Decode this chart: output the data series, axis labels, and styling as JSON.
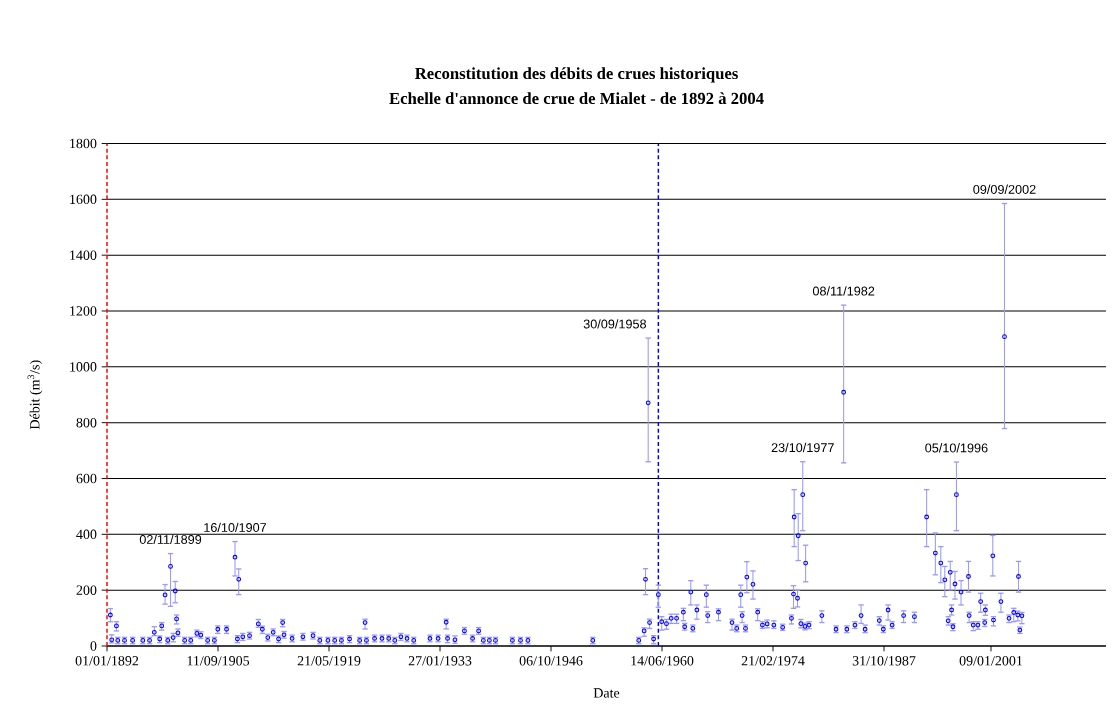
{
  "chart_data": {
    "type": "scatter",
    "title": "Reconstitution des débits de crues historiques",
    "subtitle": "Echelle d'annonce de crue de Mialet - de 1892 à 2004",
    "xlabel": "Date",
    "ylabel": "Débit (m$^{3}$/s)",
    "xlim": [
      "1892-01-01",
      "2015-03-18"
    ],
    "ylim": [
      0,
      1800
    ],
    "xticks": [
      {
        "value": "1892-01-01",
        "label": "01/01/1892"
      },
      {
        "value": "1905-09-11",
        "label": "11/09/1905"
      },
      {
        "value": "1919-05-21",
        "label": "21/05/1919"
      },
      {
        "value": "1933-01-27",
        "label": "27/01/1933"
      },
      {
        "value": "1946-10-06",
        "label": "06/10/1946"
      },
      {
        "value": "1960-06-14",
        "label": "14/06/1960"
      },
      {
        "value": "1974-02-21",
        "label": "21/02/1974"
      },
      {
        "value": "1987-10-31",
        "label": "31/10/1987"
      },
      {
        "value": "2001-01-09",
        "label": "09/01/2001"
      }
    ],
    "yticks": [
      0,
      200,
      400,
      600,
      800,
      1000,
      1200,
      1400,
      1600,
      1800
    ],
    "grid": "y",
    "x": [
      "1892-06",
      "1892-08",
      "1893-03",
      "1893-05",
      "1894-03",
      "1895-03",
      "1896-06",
      "1897-04",
      "1897-11",
      "1898-07",
      "1898-10",
      "1899-03",
      "1899-07",
      "1899-11-02",
      "1900-03",
      "1900-06",
      "1900-08",
      "1900-10",
      "1901-08",
      "1902-05",
      "1903-02",
      "1903-08",
      "1904-06",
      "1905-04",
      "1905-09",
      "1906-10",
      "1907-10-16",
      "1908-02",
      "1908-04",
      "1908-10",
      "1909-08",
      "1910-09",
      "1911-03",
      "1911-11",
      "1912-07",
      "1913-03",
      "1913-09",
      "1913-11",
      "1914-11",
      "1916-03",
      "1917-06",
      "1918-04",
      "1919-04",
      "1920-02",
      "1920-12",
      "1921-12",
      "1923-03",
      "1923-11",
      "1924-01",
      "1925-01",
      "1925-12",
      "1926-10",
      "1927-07",
      "1928-04",
      "1929-01",
      "1929-11",
      "1931-11",
      "1932-11",
      "1933-11",
      "1934-01",
      "1934-12",
      "1936-02",
      "1937-02",
      "1937-11",
      "1938-06",
      "1939-03",
      "1939-12",
      "1942-01",
      "1943-01",
      "1943-12",
      "1951-12",
      "1957-08",
      "1958-04",
      "1958-06",
      "1958-09-30",
      "1958-12",
      "1959-06",
      "1960-01",
      "1960-06",
      "1961-01",
      "1961-08",
      "1962-04",
      "1963-02",
      "1963-04",
      "1964-01",
      "1964-04",
      "1964-10",
      "1965-12",
      "1966-02",
      "1967-06",
      "1969-02",
      "1969-09",
      "1970-03",
      "1970-05",
      "1970-10",
      "1970-12",
      "1971-09",
      "1972-04",
      "1972-11",
      "1973-06",
      "1974-04",
      "1975-05",
      "1976-06",
      "1976-09",
      "1976-10",
      "1977-03",
      "1977-04",
      "1977-08",
      "1977-10-23",
      "1978-02",
      "1978-03",
      "1978-08",
      "1980-03",
      "1981-12",
      "1982-11-08",
      "1983-04",
      "1984-04",
      "1985-01",
      "1985-07",
      "1987-04",
      "1987-10",
      "1988-05",
      "1988-11",
      "1990-04",
      "1991-08",
      "1993-02",
      "1994-03",
      "1994-11",
      "1995-05",
      "1995-10",
      "1996-01",
      "1996-03",
      "1996-05",
      "1996-08",
      "1996-10-05",
      "1997-05",
      "1998-04",
      "1998-05",
      "1998-11",
      "1999-06",
      "1999-10",
      "2000-04",
      "2000-05",
      "2001-04",
      "2001-05",
      "2002-04",
      "2002-09-09",
      "2003-04",
      "2003-11",
      "2004-05",
      "2004-06",
      "2004-08",
      "2004-11"
    ],
    "series": [
      {
        "color": "#0000ff",
        "marker": "circle",
        "values": [
          111,
          22,
          72,
          20,
          20,
          20,
          20,
          20,
          49,
          25,
          72,
          183,
          20,
          285,
          30,
          197,
          97,
          47,
          20,
          20,
          45,
          39,
          20,
          20,
          60,
          60,
          318,
          25,
          239,
          33,
          37,
          79,
          60,
          30,
          49,
          25,
          84,
          40,
          27,
          33,
          37,
          20,
          20,
          20,
          20,
          25,
          20,
          84,
          20,
          27,
          27,
          27,
          20,
          33,
          27,
          20,
          27,
          27,
          85,
          27,
          22,
          54,
          27,
          54,
          20,
          20,
          20,
          20,
          20,
          20,
          20,
          20,
          54,
          239,
          871,
          84,
          25,
          184,
          87,
          80,
          99,
          99,
          121,
          69,
          193,
          63,
          129,
          184,
          109,
          121,
          84,
          63,
          184,
          109,
          63,
          247,
          221,
          121,
          75,
          79,
          75,
          67,
          99,
          186,
          462,
          171,
          395,
          80,
          542,
          70,
          297,
          75,
          109,
          60,
          909,
          60,
          75,
          109,
          60,
          91,
          60,
          129,
          75,
          109,
          105,
          462,
          333,
          297,
          237,
          90,
          264,
          129,
          69,
          222,
          542,
          193,
          249,
          109,
          75,
          75,
          159,
          84,
          129,
          323,
          93,
          159,
          1108,
          99,
          120,
          111,
          249,
          57,
          108
        ],
        "errors": [
          [
            87,
            134
          ],
          [
            11,
            40
          ],
          [
            54,
            87
          ],
          [
            8,
            31
          ],
          [
            8,
            31
          ],
          [
            8,
            31
          ],
          [
            8,
            31
          ],
          [
            8,
            31
          ],
          [
            37,
            69
          ],
          [
            12,
            36
          ],
          [
            57,
            84
          ],
          [
            150,
            220
          ],
          [
            8,
            31
          ],
          [
            142,
            331
          ],
          [
            15,
            45
          ],
          [
            155,
            231
          ],
          [
            79,
            111
          ],
          [
            35,
            61
          ],
          [
            8,
            31
          ],
          [
            8,
            31
          ],
          [
            33,
            57
          ],
          [
            27,
            51
          ],
          [
            8,
            31
          ],
          [
            8,
            31
          ],
          [
            45,
            72
          ],
          [
            45,
            72
          ],
          [
            251,
            374
          ],
          [
            12,
            37
          ],
          [
            184,
            276
          ],
          [
            20,
            45
          ],
          [
            25,
            49
          ],
          [
            67,
            95
          ],
          [
            45,
            71
          ],
          [
            18,
            42
          ],
          [
            37,
            61
          ],
          [
            12,
            36
          ],
          [
            69,
            95
          ],
          [
            28,
            52
          ],
          [
            15,
            39
          ],
          [
            21,
            45
          ],
          [
            25,
            49
          ],
          [
            8,
            31
          ],
          [
            8,
            31
          ],
          [
            8,
            31
          ],
          [
            8,
            31
          ],
          [
            12,
            37
          ],
          [
            8,
            31
          ],
          [
            61,
            96
          ],
          [
            8,
            31
          ],
          [
            15,
            39
          ],
          [
            15,
            39
          ],
          [
            15,
            39
          ],
          [
            8,
            31
          ],
          [
            20,
            45
          ],
          [
            15,
            39
          ],
          [
            8,
            31
          ],
          [
            15,
            39
          ],
          [
            15,
            39
          ],
          [
            61,
            96
          ],
          [
            12,
            39
          ],
          [
            10,
            36
          ],
          [
            42,
            66
          ],
          [
            15,
            39
          ],
          [
            42,
            66
          ],
          [
            8,
            31
          ],
          [
            8,
            31
          ],
          [
            8,
            31
          ],
          [
            8,
            31
          ],
          [
            8,
            31
          ],
          [
            8,
            31
          ],
          [
            8,
            31
          ],
          [
            8,
            31
          ],
          [
            35,
            65
          ],
          [
            184,
            277
          ],
          [
            660,
            1103
          ],
          [
            63,
            96
          ],
          [
            8,
            37
          ],
          [
            139,
            218
          ],
          [
            57,
            105
          ],
          [
            60,
            95
          ],
          [
            81,
            114
          ],
          [
            81,
            114
          ],
          [
            91,
            135
          ],
          [
            57,
            81
          ],
          [
            147,
            234
          ],
          [
            51,
            75
          ],
          [
            96,
            147
          ],
          [
            139,
            218
          ],
          [
            84,
            123
          ],
          [
            91,
            133
          ],
          [
            57,
            96
          ],
          [
            51,
            75
          ],
          [
            139,
            218
          ],
          [
            84,
            123
          ],
          [
            51,
            75
          ],
          [
            191,
            302
          ],
          [
            168,
            269
          ],
          [
            91,
            133
          ],
          [
            63,
            87
          ],
          [
            65,
            93
          ],
          [
            63,
            90
          ],
          [
            56,
            78
          ],
          [
            79,
            111
          ],
          [
            135,
            216
          ],
          [
            356,
            560
          ],
          [
            140,
            200
          ],
          [
            306,
            474
          ],
          [
            65,
            95
          ],
          [
            413,
            660
          ],
          [
            58,
            82
          ],
          [
            230,
            361
          ],
          [
            62,
            87
          ],
          [
            84,
            126
          ],
          [
            48,
            72
          ],
          [
            656,
            1221
          ],
          [
            48,
            72
          ],
          [
            63,
            87
          ],
          [
            81,
            147
          ],
          [
            48,
            75
          ],
          [
            75,
            105
          ],
          [
            48,
            72
          ],
          [
            93,
            147
          ],
          [
            63,
            87
          ],
          [
            84,
            126
          ],
          [
            84,
            121
          ],
          [
            356,
            560
          ],
          [
            255,
            405
          ],
          [
            227,
            356
          ],
          [
            177,
            285
          ],
          [
            75,
            105
          ],
          [
            201,
            303
          ],
          [
            111,
            147
          ],
          [
            55,
            80
          ],
          [
            168,
            267
          ],
          [
            413,
            659
          ],
          [
            147,
            234
          ],
          [
            193,
            303
          ],
          [
            84,
            121
          ],
          [
            55,
            87
          ],
          [
            60,
            87
          ],
          [
            121,
            189
          ],
          [
            70,
            95
          ],
          [
            110,
            147
          ],
          [
            251,
            396
          ],
          [
            72,
            105
          ],
          [
            121,
            189
          ],
          [
            779,
            1585
          ],
          [
            84,
            111
          ],
          [
            87,
            135
          ],
          [
            90,
            125
          ],
          [
            193,
            303
          ],
          [
            45,
            68
          ],
          [
            80,
            120
          ]
        ]
      }
    ],
    "ref_lines": [
      {
        "axis": "x",
        "value": "1892-01-01",
        "color": "#ff0000",
        "line_style": "dashed"
      },
      {
        "axis": "x",
        "value": "1960-01-01",
        "color": "#0000ff",
        "line_style": "dashed"
      }
    ],
    "annotations": [
      {
        "text": "02/11/1899",
        "x": "1899-11-02",
        "y": 331
      },
      {
        "text": "16/10/1907",
        "x": "1907-10-16",
        "y": 374
      },
      {
        "text": "30/09/1958",
        "x": "1958-09-30",
        "y": 1103
      },
      {
        "text": "23/10/1977",
        "x": "1977-10-23",
        "y": 660
      },
      {
        "text": "08/11/1982",
        "x": "1982-11-08",
        "y": 1221
      },
      {
        "text": "05/10/1996",
        "x": "1996-10-05",
        "y": 659
      },
      {
        "text": "09/09/2002",
        "x": "2002-09-09",
        "y": 1585
      }
    ]
  }
}
